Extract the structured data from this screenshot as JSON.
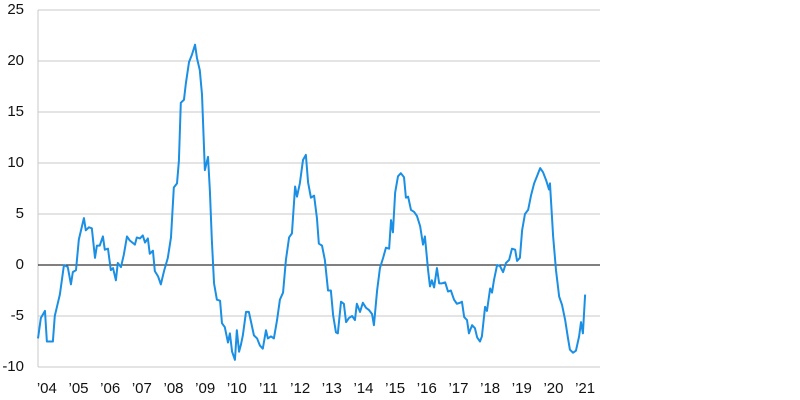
{
  "chart_data": {
    "type": "line",
    "color": "#1a8fe3",
    "grid": true,
    "xlim": [
      2003.72,
      2021.47
    ],
    "ylim": [
      -10,
      25
    ],
    "yticks": [
      -10,
      -5,
      0,
      5,
      10,
      15,
      20,
      25
    ],
    "xticks": [
      {
        "value": 2004,
        "label": "’04"
      },
      {
        "value": 2005,
        "label": "’05"
      },
      {
        "value": 2006,
        "label": "’06"
      },
      {
        "value": 2007,
        "label": "’07"
      },
      {
        "value": 2008,
        "label": "’08"
      },
      {
        "value": 2009,
        "label": "’09"
      },
      {
        "value": 2010,
        "label": "’10"
      },
      {
        "value": 2011,
        "label": "’11"
      },
      {
        "value": 2012,
        "label": "’12"
      },
      {
        "value": 2013,
        "label": "’13"
      },
      {
        "value": 2014,
        "label": "’14"
      },
      {
        "value": 2015,
        "label": "’15"
      },
      {
        "value": 2016,
        "label": "’16"
      },
      {
        "value": 2017,
        "label": "’17"
      },
      {
        "value": 2018,
        "label": "’18"
      },
      {
        "value": 2019,
        "label": "’19"
      },
      {
        "value": 2020,
        "label": "’20"
      },
      {
        "value": 2021,
        "label": "’21"
      }
    ],
    "x": [
      2003.72,
      2003.81,
      2003.94,
      2004.0,
      2004.19,
      2004.25,
      2004.41,
      2004.54,
      2004.66,
      2004.76,
      2004.82,
      2004.92,
      2005.01,
      2005.17,
      2005.23,
      2005.33,
      2005.42,
      2005.52,
      2005.58,
      2005.67,
      2005.77,
      2005.83,
      2005.93,
      2006.02,
      2006.09,
      2006.18,
      2006.24,
      2006.34,
      2006.43,
      2006.53,
      2006.62,
      2006.78,
      2006.84,
      2006.94,
      2007.03,
      2007.1,
      2007.19,
      2007.25,
      2007.35,
      2007.41,
      2007.51,
      2007.6,
      2007.7,
      2007.82,
      2007.92,
      2008.01,
      2008.11,
      2008.17,
      2008.23,
      2008.33,
      2008.39,
      2008.49,
      2008.58,
      2008.68,
      2008.74,
      2008.83,
      2008.9,
      2008.99,
      2009.09,
      2009.15,
      2009.21,
      2009.28,
      2009.37,
      2009.47,
      2009.53,
      2009.62,
      2009.72,
      2009.78,
      2009.85,
      2009.94,
      2010.0,
      2010.07,
      2010.13,
      2010.19,
      2010.29,
      2010.38,
      2010.45,
      2010.54,
      2010.64,
      2010.73,
      2010.82,
      2010.92,
      2010.98,
      2011.08,
      2011.17,
      2011.27,
      2011.36,
      2011.46,
      2011.55,
      2011.65,
      2011.74,
      2011.84,
      2011.9,
      2011.99,
      2012.09,
      2012.18,
      2012.25,
      2012.34,
      2012.44,
      2012.53,
      2012.59,
      2012.69,
      2012.78,
      2012.88,
      2012.97,
      2013.04,
      2013.13,
      2013.19,
      2013.29,
      2013.38,
      2013.45,
      2013.54,
      2013.64,
      2013.73,
      2013.79,
      2013.89,
      2013.98,
      2014.08,
      2014.17,
      2014.27,
      2014.33,
      2014.43,
      2014.52,
      2014.62,
      2014.71,
      2014.81,
      2014.87,
      2014.93,
      2015.0,
      2015.09,
      2015.18,
      2015.28,
      2015.34,
      2015.41,
      2015.5,
      2015.6,
      2015.69,
      2015.79,
      2015.88,
      2015.94,
      2016.04,
      2016.1,
      2016.16,
      2016.23,
      2016.32,
      2016.39,
      2016.48,
      2016.58,
      2016.67,
      2016.76,
      2016.86,
      2016.95,
      2017.05,
      2017.11,
      2017.18,
      2017.27,
      2017.33,
      2017.43,
      2017.52,
      2017.59,
      2017.68,
      2017.74,
      2017.84,
      2017.9,
      2018.0,
      2018.06,
      2018.12,
      2018.22,
      2018.31,
      2018.41,
      2018.5,
      2018.6,
      2018.69,
      2018.79,
      2018.85,
      2018.94,
      2019.01,
      2019.1,
      2019.2,
      2019.29,
      2019.39,
      2019.48,
      2019.58,
      2019.67,
      2019.77,
      2019.86,
      2019.89,
      2019.99,
      2020.08,
      2020.18,
      2020.27,
      2020.37,
      2020.46,
      2020.52,
      2020.62,
      2020.71,
      2020.81,
      2020.87,
      2020.93,
      2021.0
    ],
    "values": [
      -7.2,
      -5.2,
      -4.5,
      -7.5,
      -7.5,
      -5,
      -2.9,
      0,
      -0.2,
      -1.9,
      -0.7,
      -0.5,
      2.5,
      4.6,
      3.4,
      3.7,
      3.6,
      0.7,
      1.9,
      1.9,
      2.8,
      1.5,
      1.6,
      -0.5,
      -0.3,
      -1.5,
      0.2,
      -0.2,
      1,
      2.8,
      2.4,
      2,
      2.7,
      2.6,
      2.9,
      2.2,
      2.6,
      1.1,
      1.4,
      -0.6,
      -1.1,
      -1.9,
      -0.6,
      0.7,
      2.7,
      7.6,
      8,
      10.2,
      15.9,
      16.2,
      17.8,
      19.9,
      20.6,
      21.6,
      20.3,
      19.1,
      16.7,
      9.3,
      10.6,
      7.2,
      2.5,
      -1.8,
      -3.4,
      -3.5,
      -5.7,
      -6.1,
      -7.6,
      -6.7,
      -8.5,
      -9.3,
      -6.4,
      -8.5,
      -7.8,
      -6.9,
      -4.6,
      -4.6,
      -5.6,
      -6.9,
      -7.2,
      -7.9,
      -8.2,
      -6.4,
      -7.2,
      -7,
      -7.2,
      -5.4,
      -3.4,
      -2.7,
      0.5,
      2.7,
      3.1,
      7.7,
      6.7,
      8,
      10.3,
      10.8,
      8.1,
      6.6,
      6.8,
      4.6,
      2.1,
      1.9,
      0.5,
      -2.5,
      -2.5,
      -4.9,
      -6.6,
      -6.7,
      -3.6,
      -3.8,
      -5.6,
      -5.2,
      -5,
      -5.4,
      -3.8,
      -4.6,
      -3.7,
      -4.2,
      -4.4,
      -4.8,
      -5.9,
      -2.5,
      -0.3,
      0.7,
      1.7,
      1.6,
      4.4,
      3.2,
      7.1,
      8.7,
      9,
      8.6,
      6.6,
      6.7,
      5.4,
      5.2,
      4.8,
      3.8,
      2,
      2.8,
      -0.5,
      -2.1,
      -1.5,
      -2.2,
      -0.3,
      -1.8,
      -1.8,
      -1.7,
      -2.6,
      -2.5,
      -3.4,
      -3.8,
      -3.7,
      -3.6,
      -5.1,
      -5.4,
      -6.7,
      -5.9,
      -6.2,
      -7.1,
      -7.5,
      -7,
      -4.1,
      -4.5,
      -2.3,
      -2.7,
      -1.5,
      0,
      -0.1,
      -0.7,
      0.2,
      0.5,
      1.6,
      1.5,
      0.4,
      0.7,
      3.4,
      5,
      5.4,
      6.8,
      8,
      8.7,
      9.5,
      9.1,
      8.3,
      7.4,
      8,
      2.8,
      -0.5,
      -3.1,
      -3.9,
      -5.4,
      -7.2,
      -8.3,
      -8.6,
      -8.4,
      -7,
      -5.6,
      -6.7,
      -2.9
    ]
  }
}
